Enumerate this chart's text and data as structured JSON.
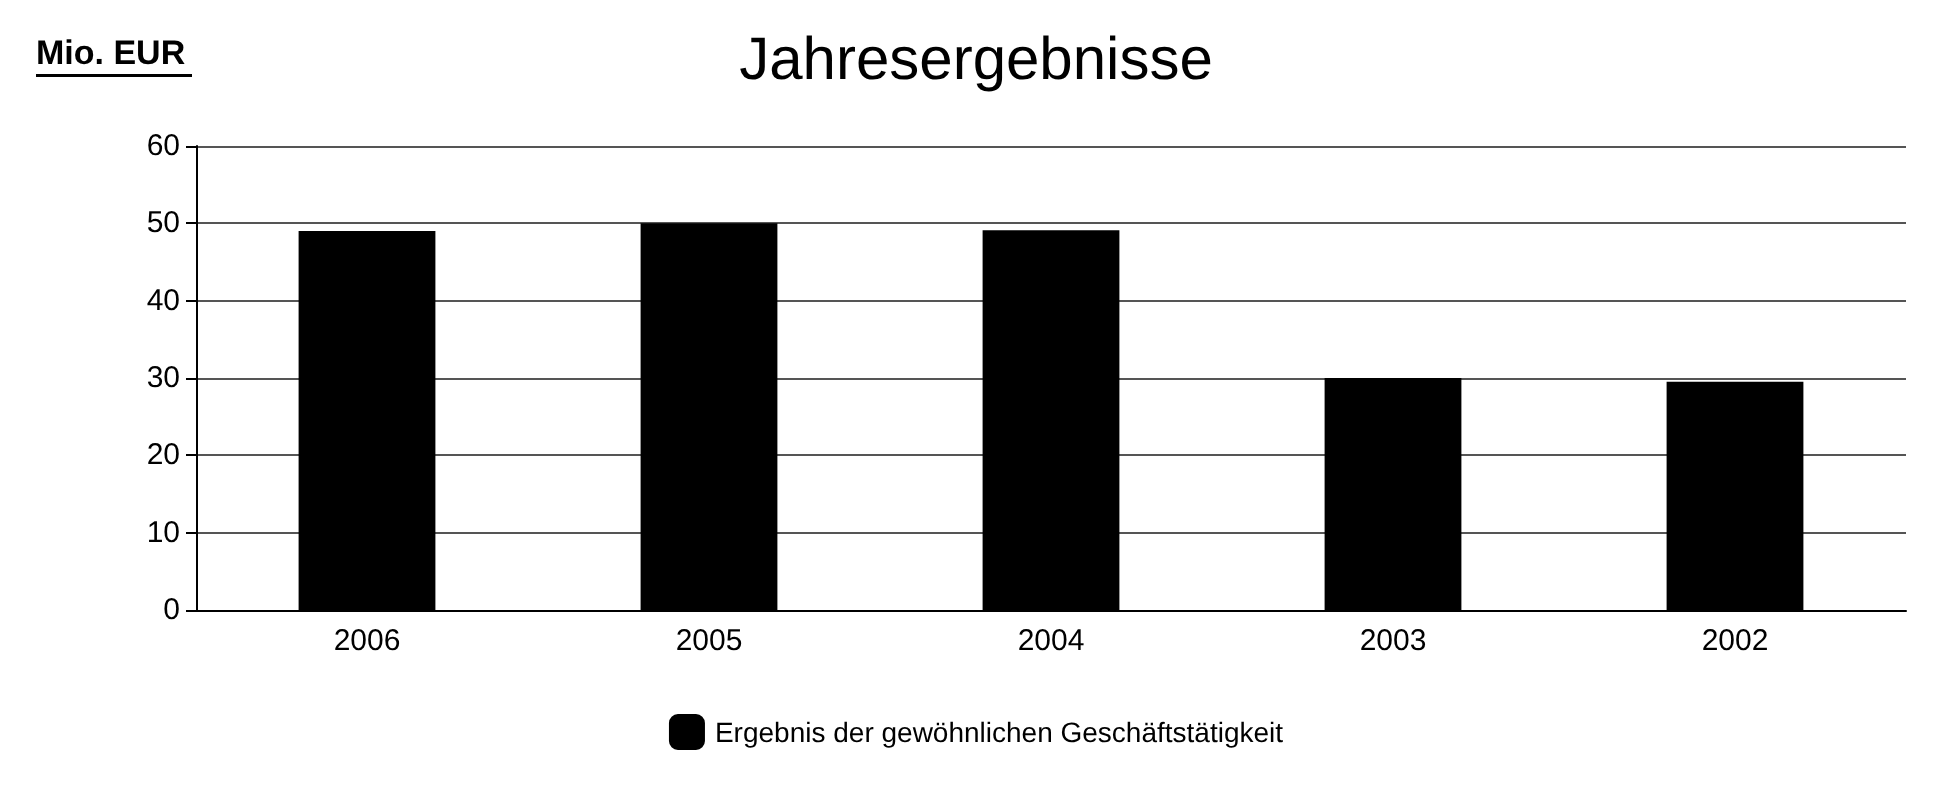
{
  "chart_data": {
    "type": "bar",
    "title": "Jahresergebnisse",
    "ylabel": "Mio. EUR",
    "categories": [
      "2006",
      "2005",
      "2004",
      "2003",
      "2002"
    ],
    "series": [
      {
        "name": "Ergebnis der gewöhnlichen Geschäftstätigkeit",
        "color": "#000000",
        "values": [
          49,
          50,
          49.1,
          30,
          29.5
        ]
      }
    ],
    "ylim": [
      0,
      60
    ],
    "yticks": [
      0,
      10,
      20,
      30,
      40,
      50,
      60
    ],
    "grid": "y",
    "legend": "bottom"
  }
}
